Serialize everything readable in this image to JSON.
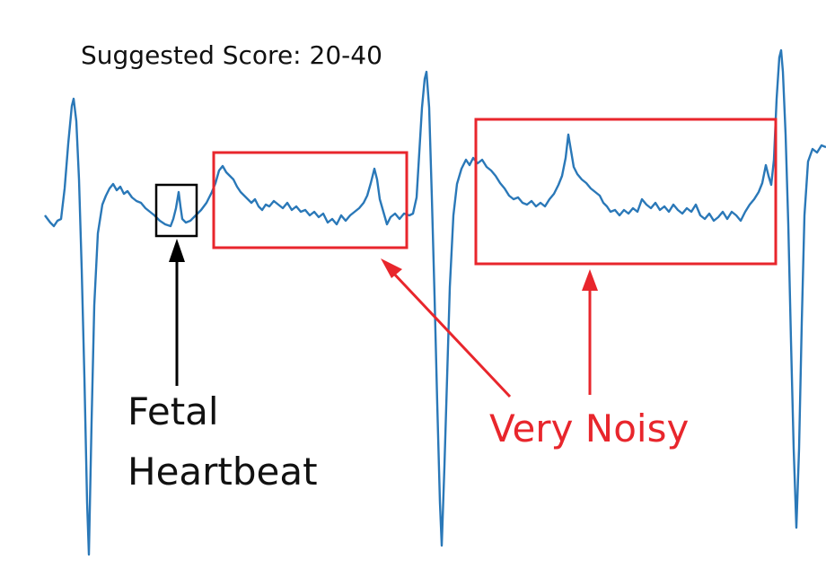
{
  "header": {
    "title": "Suggested Score: 20-40"
  },
  "annotations": {
    "fetal_heartbeat": {
      "lines": [
        "Fetal",
        "Heartbeat"
      ]
    },
    "noise": {
      "label": "Very Noisy"
    }
  }
}
